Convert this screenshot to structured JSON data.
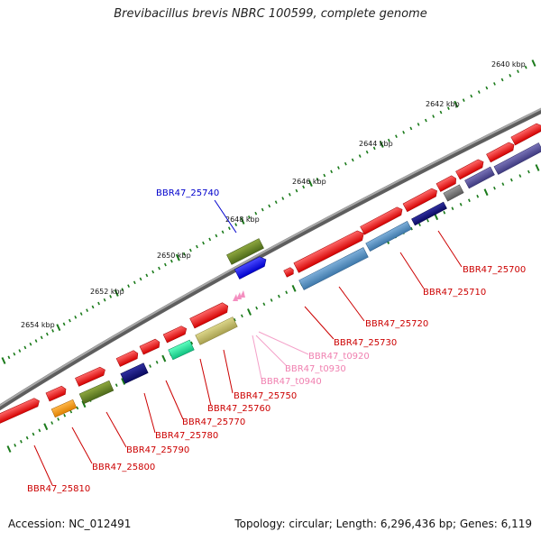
{
  "title": "Brevibacillus brevis NBRC 100599, complete genome",
  "footer": {
    "accession": "Accession: NC_012491",
    "summary": "Topology: circular; Length: 6,296,436 bp; Genes: 6,119"
  },
  "scale_labels": [
    "2640 kbp",
    "2642 kbp",
    "2644 kbp",
    "2646 kbp",
    "2648 kbp",
    "2650 kbp",
    "2652 kbp",
    "2654 kbp"
  ],
  "gene_labels": [
    {
      "text": "BBR47_25700",
      "color": "#cc0000"
    },
    {
      "text": "BBR47_25710",
      "color": "#cc0000"
    },
    {
      "text": "BBR47_25720",
      "color": "#cc0000"
    },
    {
      "text": "BBR47_25730",
      "color": "#cc0000"
    },
    {
      "text": "BBR47_t0920",
      "color": "#f080b0"
    },
    {
      "text": "BBR47_t0930",
      "color": "#f080b0"
    },
    {
      "text": "BBR47_t0940",
      "color": "#f080b0"
    },
    {
      "text": "BBR47_25740",
      "color": "#0000cc"
    },
    {
      "text": "BBR47_25750",
      "color": "#cc0000"
    },
    {
      "text": "BBR47_25760",
      "color": "#cc0000"
    },
    {
      "text": "BBR47_25770",
      "color": "#cc0000"
    },
    {
      "text": "BBR47_25780",
      "color": "#cc0000"
    },
    {
      "text": "BBR47_25790",
      "color": "#cc0000"
    },
    {
      "text": "BBR47_25800",
      "color": "#cc0000"
    },
    {
      "text": "BBR47_25810",
      "color": "#cc0000"
    }
  ],
  "colors": {
    "cds": "#ee1111",
    "trna": "#f48fc0",
    "backbone": "#777777",
    "tick": "#1a7a1a"
  }
}
